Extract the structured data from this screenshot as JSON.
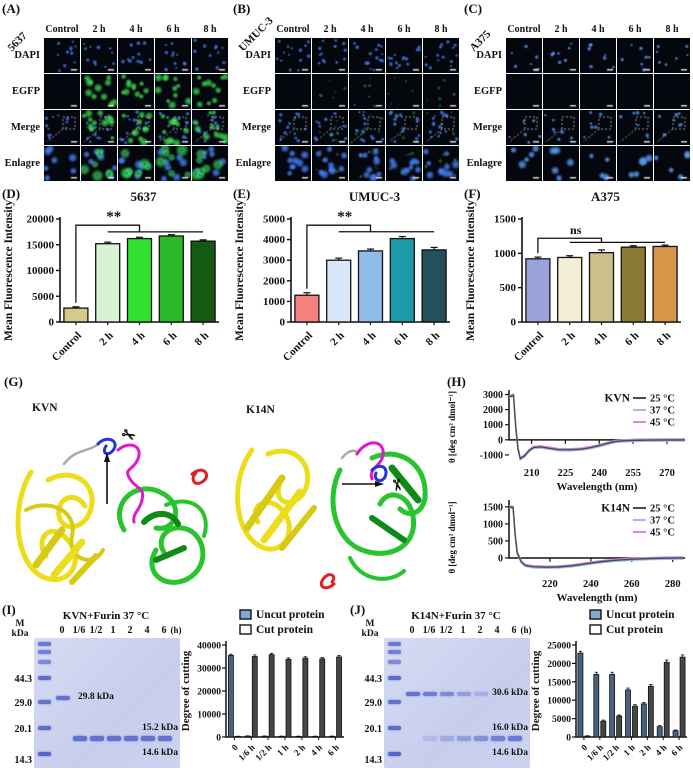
{
  "panels": {
    "A": {
      "label": "(A)",
      "cell_line": "5637",
      "columns": [
        "Control",
        "2 h",
        "4 h",
        "6 h",
        "8 h"
      ],
      "rows": [
        "DAPI",
        "EGFP",
        "Merge",
        "Enlagre"
      ],
      "egfp_level": "high",
      "dapi_count": 11
    },
    "B": {
      "label": "(B)",
      "cell_line": "UMUC-3",
      "columns": [
        "Control",
        "2 h",
        "4 h",
        "6 h",
        "8 h"
      ],
      "rows": [
        "DAPI",
        "EGFP",
        "Merge",
        "Enlagre"
      ],
      "egfp_level": "low",
      "dapi_count": 14
    },
    "C": {
      "label": "(C)",
      "cell_line": "A375",
      "columns": [
        "Control",
        "2 h",
        "4 h",
        "6 h",
        "8 h"
      ],
      "rows": [
        "DAPI",
        "EGFP",
        "Merge",
        "Enlagre"
      ],
      "egfp_level": "none",
      "dapi_count": 7
    },
    "D": {
      "label": "(D)"
    },
    "E": {
      "label": "(E)"
    },
    "F": {
      "label": "(F)"
    },
    "G": {
      "label": "(G)",
      "structures": [
        {
          "name": "KVN"
        },
        {
          "name": "K14N"
        }
      ]
    },
    "H": {
      "label": "(H)"
    },
    "I": {
      "label": "(I)"
    },
    "J": {
      "label": "(J)"
    }
  },
  "chart_data": [
    {
      "id": "D",
      "type": "bar",
      "title": "5637",
      "ylabel": "Mean Fluorescence Intensity",
      "categories": [
        "Control",
        "2 h",
        "4 h",
        "6 h",
        "8 h"
      ],
      "values": [
        2700,
        15200,
        16200,
        16700,
        15700
      ],
      "errors": [
        250,
        300,
        250,
        250,
        250
      ],
      "yticks": [
        0,
        5000,
        10000,
        15000,
        20000
      ],
      "ylim": [
        0,
        20000
      ],
      "colors": [
        "#d6c98c",
        "#d9f2d2",
        "#30e030",
        "#28b828",
        "#145a14"
      ],
      "significance": "**",
      "sig_lines": [
        18800,
        17500
      ]
    },
    {
      "id": "E",
      "type": "bar",
      "title": "UMUC-3",
      "ylabel": "Mean Fluorescence Intensity",
      "categories": [
        "Control",
        "2 h",
        "4 h",
        "6 h",
        "8 h"
      ],
      "values": [
        1300,
        3000,
        3450,
        4050,
        3500
      ],
      "errors": [
        120,
        100,
        90,
        100,
        120
      ],
      "yticks": [
        0,
        1000,
        2000,
        3000,
        4000,
        5000
      ],
      "ylim": [
        0,
        5000
      ],
      "colors": [
        "#f5827d",
        "#d8e6f7",
        "#8fbce8",
        "#1d9aaa",
        "#24505e"
      ],
      "significance": "**",
      "sig_lines": [
        4700,
        4380
      ]
    },
    {
      "id": "F",
      "type": "bar",
      "title": "A375",
      "ylabel": "Mean Fluorescence Intensity",
      "categories": [
        "Control",
        "2 h",
        "4 h",
        "6 h",
        "8 h"
      ],
      "values": [
        920,
        940,
        1010,
        1090,
        1100
      ],
      "errors": [
        25,
        25,
        40,
        20,
        20
      ],
      "yticks": [
        0,
        500,
        1000,
        1500
      ],
      "ylim": [
        0,
        1500
      ],
      "colors": [
        "#9aa2dc",
        "#f2eed8",
        "#cbc08a",
        "#8a7a33",
        "#d9964a"
      ],
      "significance": "ns",
      "sig_lines": [
        1220,
        1160
      ]
    },
    {
      "id": "H_KVN",
      "type": "line",
      "name": "KVN",
      "ylabel": "θ [deg cm² dmol⁻¹]",
      "xlabel": "Wavelength (nm)",
      "xticks": [
        210,
        225,
        240,
        255,
        270
      ],
      "yticks": [
        3000,
        2000,
        1000,
        0,
        -1000
      ],
      "xlim": [
        200,
        278
      ],
      "ylim": [
        -1600,
        3300
      ],
      "legend": [
        {
          "label": "25 °C",
          "color": "#4a4a4a"
        },
        {
          "label": "37 °C",
          "color": "#9cc0f0"
        },
        {
          "label": "45 °C",
          "color": "#cf8ade"
        }
      ],
      "points": [
        [
          200,
          2850
        ],
        [
          202,
          2950
        ],
        [
          203,
          800
        ],
        [
          204,
          -600
        ],
        [
          205,
          -1250
        ],
        [
          207,
          -1050
        ],
        [
          209,
          -700
        ],
        [
          211,
          -500
        ],
        [
          214,
          -470
        ],
        [
          218,
          -560
        ],
        [
          222,
          -650
        ],
        [
          227,
          -660
        ],
        [
          232,
          -620
        ],
        [
          236,
          -520
        ],
        [
          240,
          -380
        ],
        [
          244,
          -220
        ],
        [
          247,
          -120
        ],
        [
          250,
          -70
        ],
        [
          255,
          -40
        ],
        [
          260,
          -25
        ],
        [
          265,
          -18
        ],
        [
          270,
          -12
        ],
        [
          275,
          -8
        ],
        [
          278,
          -5
        ]
      ]
    },
    {
      "id": "H_K14N",
      "type": "line",
      "name": "K14N",
      "ylabel": "θ [deg cm² dmol⁻¹]",
      "xlabel": "Wavelength (nm)",
      "xticks": [
        220,
        240,
        260,
        280
      ],
      "yticks": [
        1500,
        1000,
        500,
        0
      ],
      "xlim": [
        200,
        286
      ],
      "ylim": [
        -500,
        1700
      ],
      "legend": [
        {
          "label": "25 °C",
          "color": "#4a4a4a"
        },
        {
          "label": "37 °C",
          "color": "#9cc0f0"
        },
        {
          "label": "45 °C",
          "color": "#cf8ade"
        }
      ],
      "points": [
        [
          200,
          1500
        ],
        [
          202,
          1480
        ],
        [
          203,
          700
        ],
        [
          204,
          150
        ],
        [
          206,
          -120
        ],
        [
          208,
          -220
        ],
        [
          212,
          -260
        ],
        [
          218,
          -270
        ],
        [
          224,
          -265
        ],
        [
          230,
          -235
        ],
        [
          236,
          -185
        ],
        [
          240,
          -150
        ],
        [
          246,
          -105
        ],
        [
          252,
          -70
        ],
        [
          258,
          -45
        ],
        [
          264,
          -28
        ],
        [
          270,
          -15
        ],
        [
          276,
          -8
        ],
        [
          282,
          -4
        ],
        [
          285,
          -3
        ]
      ]
    },
    {
      "id": "I",
      "type": "grouped-bar",
      "ylabel": "Degree of cutting",
      "categories": [
        "0",
        "1/6 h",
        "1/2 h",
        "1 h",
        "2 h",
        "4 h",
        "6 h"
      ],
      "yticks": [
        0,
        10000,
        20000,
        30000,
        40000
      ],
      "ylim": [
        0,
        40000
      ],
      "legend": [
        {
          "label": "Uncut protein",
          "fill": "#7fa9cf"
        },
        {
          "label": "Cut protein",
          "fill": "#ffffff"
        }
      ],
      "bar_colors": [
        "#46627f",
        "#454545"
      ],
      "series": [
        {
          "name": "Uncut protein",
          "values": [
            35500,
            400,
            350,
            300,
            280,
            280,
            300
          ],
          "errors": [
            500,
            100,
            100,
            100,
            100,
            100,
            100
          ]
        },
        {
          "name": "Cut protein",
          "values": [
            250,
            35000,
            35800,
            33800,
            34300,
            34000,
            34800
          ],
          "errors": [
            100,
            700,
            600,
            600,
            600,
            600,
            600
          ]
        }
      ]
    },
    {
      "id": "J",
      "type": "grouped-bar",
      "ylabel": "Degree of cutting",
      "categories": [
        "0",
        "1/6 h",
        "1/2 h",
        "1 h",
        "2 h",
        "4 h",
        "6 h"
      ],
      "yticks": [
        0,
        5000,
        10000,
        15000,
        20000,
        25000
      ],
      "ylim": [
        0,
        25000
      ],
      "legend": [
        {
          "label": "Uncut protein",
          "fill": "#7fa9cf"
        },
        {
          "label": "Cut protein",
          "fill": "#ffffff"
        }
      ],
      "bar_colors": [
        "#46627f",
        "#454545"
      ],
      "series": [
        {
          "name": "Uncut protein",
          "values": [
            22800,
            17000,
            17000,
            12800,
            9000,
            2800,
            1700
          ],
          "errors": [
            500,
            600,
            600,
            500,
            400,
            300,
            200
          ]
        },
        {
          "name": "Cut protein",
          "values": [
            250,
            4300,
            5700,
            8400,
            13800,
            20300,
            21700
          ],
          "errors": [
            100,
            300,
            300,
            400,
            500,
            600,
            600
          ]
        }
      ]
    }
  ],
  "gels": {
    "I": {
      "title": "KVN+Furin 37 °C",
      "marker_header_top": "M",
      "marker_header_bottom": "kDa",
      "lane_headers": [
        "0",
        "1/6",
        "1/2",
        "1",
        "2",
        "4",
        "6",
        "(h)"
      ],
      "marker_labels": [
        "44.3",
        "29.0",
        "20.1",
        "14.3"
      ],
      "band_labels": [
        "29.8 kDa",
        "15.2 kDa",
        "14.6 kDa"
      ],
      "upper_band_lanes": [
        0
      ],
      "lower_band_lanes": [
        1,
        2,
        3,
        4,
        5,
        6
      ],
      "fade_upper": false,
      "fade_lower": false
    },
    "J": {
      "title": "K14N+Furin 37 °C",
      "marker_header_top": "M",
      "marker_header_bottom": "kDa",
      "lane_headers": [
        "0",
        "1/6",
        "1/2",
        "1",
        "2",
        "4",
        "6",
        "(h)"
      ],
      "marker_labels": [
        "44.3",
        "29.0",
        "20.1",
        "14.3"
      ],
      "band_labels": [
        "30.6 kDa",
        "16.0 kDa",
        "14.6 kDa"
      ],
      "upper_band_lanes": [
        0,
        1,
        2,
        3,
        4
      ],
      "lower_band_lanes": [
        1,
        2,
        3,
        4,
        5,
        6
      ],
      "fade_upper": true,
      "fade_lower": true
    }
  }
}
